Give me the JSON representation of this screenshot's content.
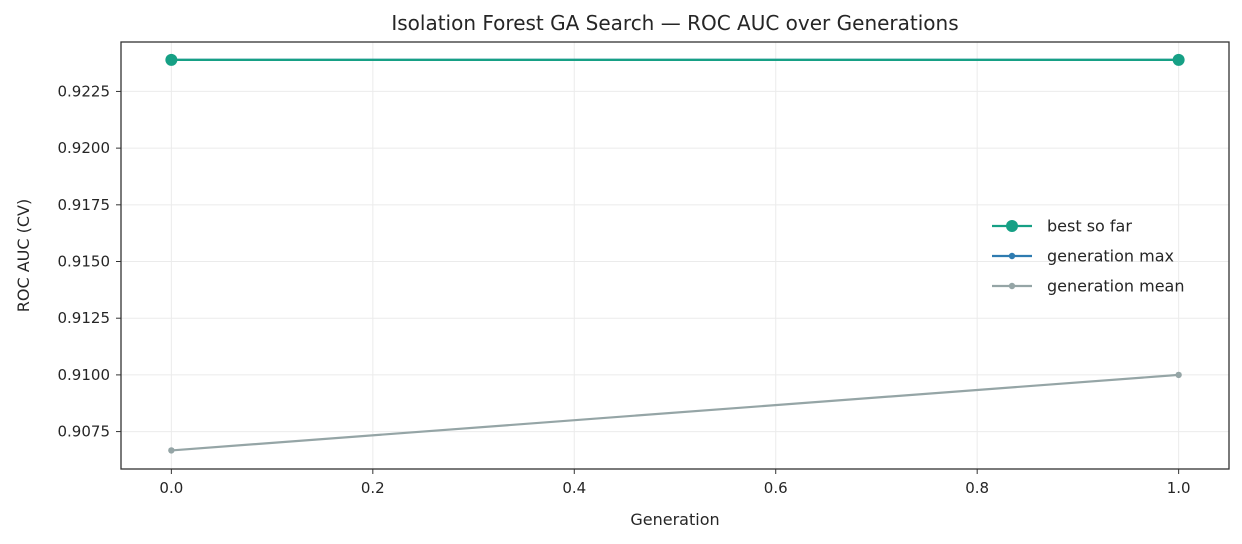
{
  "chart_data": {
    "type": "line",
    "title": "Isolation Forest GA Search — ROC AUC over Generations",
    "xlabel": "Generation",
    "ylabel": "ROC AUC (CV)",
    "x": [
      0,
      1
    ],
    "xlim": [
      -0.05,
      1.05
    ],
    "ylim": [
      0.90585,
      0.92468
    ],
    "xticks": [
      0.0,
      0.2,
      0.4,
      0.6,
      0.8,
      1.0
    ],
    "xtick_labels": [
      "0.0",
      "0.2",
      "0.4",
      "0.6",
      "0.8",
      "1.0"
    ],
    "yticks": [
      0.9075,
      0.91,
      0.9125,
      0.915,
      0.9175,
      0.92,
      0.9225
    ],
    "ytick_labels": [
      "0.9075",
      "0.9100",
      "0.9125",
      "0.9150",
      "0.9175",
      "0.9200",
      "0.9225"
    ],
    "grid": true,
    "legend_position": "center-right",
    "series": [
      {
        "name": "best so far",
        "values": [
          0.92389,
          0.92389
        ],
        "color": "#16a085",
        "marker": "large-circle"
      },
      {
        "name": "generation max",
        "values": [
          0.92389,
          0.92389
        ],
        "color": "#2e7bb0",
        "marker": "small-circle"
      },
      {
        "name": "generation mean",
        "values": [
          0.90667,
          0.91
        ],
        "color": "#95a5a6",
        "marker": "small-circle"
      }
    ]
  }
}
